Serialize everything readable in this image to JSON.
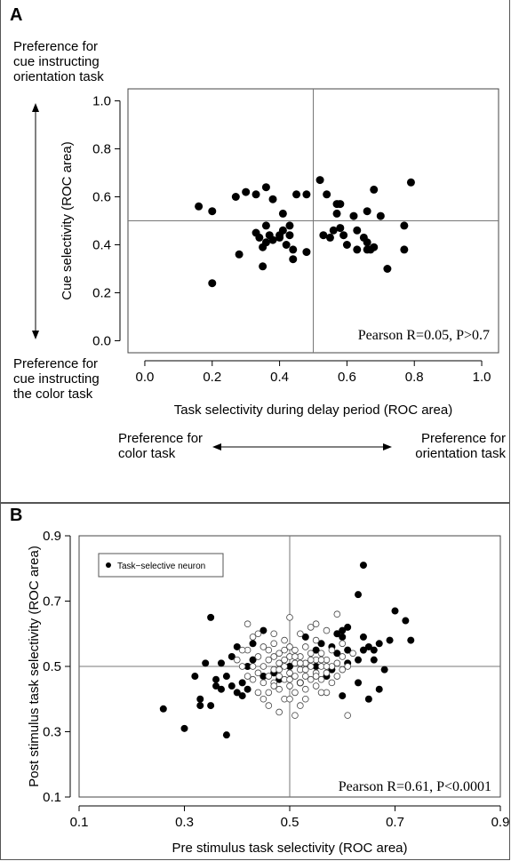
{
  "panel_a": {
    "letter": "A",
    "pref_top": [
      "Preference for",
      "cue instructing",
      "orientation task"
    ],
    "pref_bottom": [
      "Preference for",
      "cue instructing",
      "the color task"
    ],
    "pref_left": [
      "Preference for",
      "color task"
    ],
    "pref_right": [
      "Preference for",
      "orientation task"
    ]
  },
  "panel_b": {
    "letter": "B"
  },
  "chart_data": [
    {
      "type": "scatter",
      "xlabel": "Task selectivity during delay period (ROC area)",
      "ylabel": "Cue selectivity (ROC area)",
      "xlim": [
        -0.05,
        1.05
      ],
      "ylim": [
        -0.05,
        1.05
      ],
      "xticks": [
        "0.0",
        "0.2",
        "0.4",
        "0.6",
        "0.8",
        "1.0"
      ],
      "yticks": [
        "0.0",
        "0.2",
        "0.4",
        "0.6",
        "0.8",
        "1.0"
      ],
      "reference_lines": {
        "x": 0.5,
        "y": 0.5
      },
      "annotation": "Pearson R=0.05, P>0.7",
      "points": [
        [
          0.16,
          0.56
        ],
        [
          0.2,
          0.24
        ],
        [
          0.2,
          0.54
        ],
        [
          0.27,
          0.6
        ],
        [
          0.28,
          0.36
        ],
        [
          0.3,
          0.62
        ],
        [
          0.33,
          0.45
        ],
        [
          0.33,
          0.61
        ],
        [
          0.34,
          0.43
        ],
        [
          0.35,
          0.31
        ],
        [
          0.35,
          0.39
        ],
        [
          0.36,
          0.41
        ],
        [
          0.36,
          0.48
        ],
        [
          0.36,
          0.64
        ],
        [
          0.37,
          0.44
        ],
        [
          0.38,
          0.42
        ],
        [
          0.38,
          0.59
        ],
        [
          0.4,
          0.43
        ],
        [
          0.4,
          0.44
        ],
        [
          0.41,
          0.53
        ],
        [
          0.41,
          0.46
        ],
        [
          0.42,
          0.4
        ],
        [
          0.43,
          0.44
        ],
        [
          0.43,
          0.48
        ],
        [
          0.44,
          0.38
        ],
        [
          0.44,
          0.34
        ],
        [
          0.45,
          0.61
        ],
        [
          0.48,
          0.37
        ],
        [
          0.48,
          0.61
        ],
        [
          0.52,
          0.67
        ],
        [
          0.53,
          0.44
        ],
        [
          0.54,
          0.61
        ],
        [
          0.55,
          0.43
        ],
        [
          0.56,
          0.46
        ],
        [
          0.57,
          0.57
        ],
        [
          0.57,
          0.53
        ],
        [
          0.58,
          0.57
        ],
        [
          0.58,
          0.47
        ],
        [
          0.59,
          0.44
        ],
        [
          0.6,
          0.4
        ],
        [
          0.62,
          0.52
        ],
        [
          0.63,
          0.38
        ],
        [
          0.63,
          0.46
        ],
        [
          0.65,
          0.43
        ],
        [
          0.66,
          0.54
        ],
        [
          0.66,
          0.38
        ],
        [
          0.66,
          0.41
        ],
        [
          0.67,
          0.38
        ],
        [
          0.68,
          0.63
        ],
        [
          0.68,
          0.39
        ],
        [
          0.7,
          0.52
        ],
        [
          0.72,
          0.3
        ],
        [
          0.77,
          0.48
        ],
        [
          0.77,
          0.38
        ],
        [
          0.79,
          0.66
        ]
      ]
    },
    {
      "type": "scatter",
      "xlabel": "Pre stimulus task selectivity (ROC area)",
      "ylabel": "Post stimulus task selectivity (ROC area)",
      "xlim": [
        0.1,
        0.9
      ],
      "ylim": [
        0.1,
        0.9
      ],
      "xticks": [
        "0.1",
        "0.3",
        "0.5",
        "0.7",
        "0.9"
      ],
      "yticks": [
        "0.1",
        "0.3",
        "0.5",
        "0.7",
        "0.9"
      ],
      "reference_lines": {
        "x": 0.5,
        "y": 0.5
      },
      "annotation": "Pearson R=0.61, P<0.0001",
      "legend": {
        "label": "Task−selective neuron",
        "position": "top-left"
      },
      "series": [
        {
          "name": "Task−selective neuron",
          "marker": "filled",
          "points": [
            [
              0.26,
              0.37
            ],
            [
              0.3,
              0.31
            ],
            [
              0.32,
              0.47
            ],
            [
              0.33,
              0.4
            ],
            [
              0.33,
              0.38
            ],
            [
              0.34,
              0.51
            ],
            [
              0.35,
              0.38
            ],
            [
              0.35,
              0.65
            ],
            [
              0.36,
              0.46
            ],
            [
              0.36,
              0.44
            ],
            [
              0.37,
              0.51
            ],
            [
              0.37,
              0.43
            ],
            [
              0.38,
              0.47
            ],
            [
              0.38,
              0.29
            ],
            [
              0.39,
              0.53
            ],
            [
              0.39,
              0.44
            ],
            [
              0.4,
              0.56
            ],
            [
              0.4,
              0.42
            ],
            [
              0.41,
              0.45
            ],
            [
              0.41,
              0.41
            ],
            [
              0.42,
              0.5
            ],
            [
              0.42,
              0.43
            ],
            [
              0.43,
              0.57
            ],
            [
              0.43,
              0.52
            ],
            [
              0.45,
              0.47
            ],
            [
              0.45,
              0.61
            ],
            [
              0.47,
              0.48
            ],
            [
              0.48,
              0.46
            ],
            [
              0.5,
              0.5
            ],
            [
              0.52,
              0.45
            ],
            [
              0.53,
              0.59
            ],
            [
              0.55,
              0.55
            ],
            [
              0.55,
              0.5
            ],
            [
              0.56,
              0.57
            ],
            [
              0.57,
              0.47
            ],
            [
              0.58,
              0.56
            ],
            [
              0.58,
              0.49
            ],
            [
              0.59,
              0.54
            ],
            [
              0.59,
              0.6
            ],
            [
              0.6,
              0.61
            ],
            [
              0.6,
              0.59
            ],
            [
              0.6,
              0.41
            ],
            [
              0.61,
              0.62
            ],
            [
              0.61,
              0.55
            ],
            [
              0.61,
              0.51
            ],
            [
              0.63,
              0.45
            ],
            [
              0.63,
              0.72
            ],
            [
              0.63,
              0.52
            ],
            [
              0.64,
              0.81
            ],
            [
              0.64,
              0.59
            ],
            [
              0.64,
              0.55
            ],
            [
              0.65,
              0.4
            ],
            [
              0.65,
              0.56
            ],
            [
              0.66,
              0.55
            ],
            [
              0.66,
              0.52
            ],
            [
              0.67,
              0.43
            ],
            [
              0.67,
              0.57
            ],
            [
              0.68,
              0.49
            ],
            [
              0.69,
              0.58
            ],
            [
              0.7,
              0.67
            ],
            [
              0.72,
              0.64
            ],
            [
              0.73,
              0.58
            ]
          ]
        },
        {
          "name": "",
          "marker": "open",
          "points": [
            [
              0.4,
              0.52
            ],
            [
              0.41,
              0.5
            ],
            [
              0.42,
              0.55
            ],
            [
              0.42,
              0.63
            ],
            [
              0.43,
              0.46
            ],
            [
              0.43,
              0.59
            ],
            [
              0.44,
              0.48
            ],
            [
              0.44,
              0.53
            ],
            [
              0.44,
              0.42
            ],
            [
              0.45,
              0.5
            ],
            [
              0.45,
              0.56
            ],
            [
              0.45,
              0.45
            ],
            [
              0.46,
              0.52
            ],
            [
              0.46,
              0.47
            ],
            [
              0.46,
              0.42
            ],
            [
              0.46,
              0.38
            ],
            [
              0.47,
              0.53
            ],
            [
              0.47,
              0.49
            ],
            [
              0.47,
              0.45
            ],
            [
              0.47,
              0.57
            ],
            [
              0.48,
              0.51
            ],
            [
              0.48,
              0.47
            ],
            [
              0.48,
              0.43
            ],
            [
              0.48,
              0.54
            ],
            [
              0.49,
              0.5
            ],
            [
              0.49,
              0.46
            ],
            [
              0.49,
              0.52
            ],
            [
              0.49,
              0.58
            ],
            [
              0.49,
              0.4
            ],
            [
              0.5,
              0.48
            ],
            [
              0.5,
              0.53
            ],
            [
              0.5,
              0.44
            ],
            [
              0.5,
              0.56
            ],
            [
              0.5,
              0.65
            ],
            [
              0.51,
              0.51
            ],
            [
              0.51,
              0.47
            ],
            [
              0.51,
              0.42
            ],
            [
              0.51,
              0.55
            ],
            [
              0.52,
              0.49
            ],
            [
              0.52,
              0.53
            ],
            [
              0.52,
              0.45
            ],
            [
              0.52,
              0.6
            ],
            [
              0.52,
              0.38
            ],
            [
              0.53,
              0.51
            ],
            [
              0.53,
              0.47
            ],
            [
              0.53,
              0.56
            ],
            [
              0.53,
              0.43
            ],
            [
              0.54,
              0.5
            ],
            [
              0.54,
              0.54
            ],
            [
              0.54,
              0.46
            ],
            [
              0.54,
              0.62
            ],
            [
              0.55,
              0.48
            ],
            [
              0.55,
              0.52
            ],
            [
              0.55,
              0.44
            ],
            [
              0.55,
              0.58
            ],
            [
              0.56,
              0.5
            ],
            [
              0.56,
              0.46
            ],
            [
              0.56,
              0.54
            ],
            [
              0.57,
              0.52
            ],
            [
              0.57,
              0.48
            ],
            [
              0.57,
              0.61
            ],
            [
              0.57,
              0.42
            ],
            [
              0.58,
              0.5
            ],
            [
              0.58,
              0.55
            ],
            [
              0.58,
              0.45
            ],
            [
              0.59,
              0.51
            ],
            [
              0.59,
              0.47
            ],
            [
              0.59,
              0.66
            ],
            [
              0.6,
              0.53
            ],
            [
              0.6,
              0.49
            ],
            [
              0.6,
              0.57
            ],
            [
              0.61,
              0.5
            ],
            [
              0.61,
              0.35
            ],
            [
              0.62,
              0.54
            ],
            [
              0.46,
              0.55
            ],
            [
              0.47,
              0.44
            ],
            [
              0.48,
              0.49
            ],
            [
              0.49,
              0.55
            ],
            [
              0.5,
              0.46
            ],
            [
              0.51,
              0.53
            ],
            [
              0.52,
              0.51
            ],
            [
              0.53,
              0.49
            ],
            [
              0.54,
              0.52
            ],
            [
              0.55,
              0.47
            ],
            [
              0.56,
              0.52
            ],
            [
              0.57,
              0.5
            ],
            [
              0.48,
              0.36
            ],
            [
              0.44,
              0.6
            ],
            [
              0.43,
              0.5
            ],
            [
              0.42,
              0.47
            ],
            [
              0.41,
              0.55
            ],
            [
              0.45,
              0.4
            ],
            [
              0.5,
              0.4
            ],
            [
              0.53,
              0.4
            ],
            [
              0.56,
              0.42
            ],
            [
              0.51,
              0.35
            ],
            [
              0.47,
              0.6
            ],
            [
              0.55,
              0.63
            ]
          ]
        }
      ]
    }
  ]
}
